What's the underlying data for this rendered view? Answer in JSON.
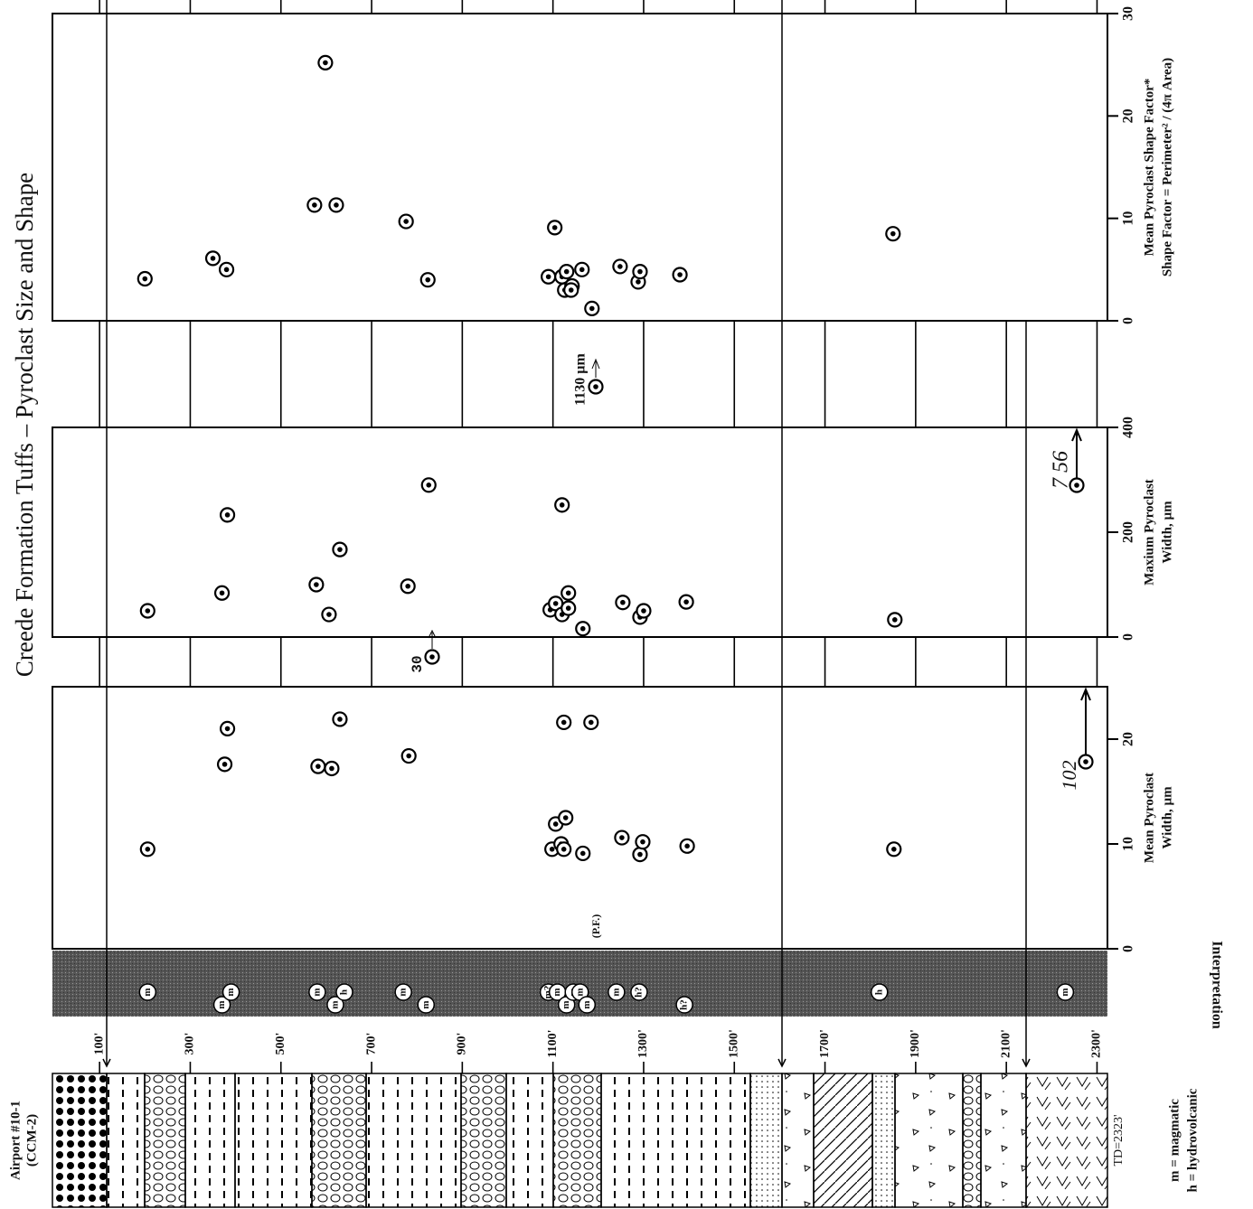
{
  "title": "Creede Formation Tuffs – Pyroclast Size and Shape",
  "well": {
    "name": [
      "Airport #10-1",
      "(CCM-2)"
    ],
    "td": "TD=2323'"
  },
  "legend": [
    "m = magmatic",
    "h = hydrovolcanic"
  ],
  "depth_axis": {
    "lim": [
      0,
      2323
    ],
    "ticks": [
      {
        "value": 100,
        "label": "100'"
      },
      {
        "value": 300,
        "label": "300'"
      },
      {
        "value": 500,
        "label": "500'"
      },
      {
        "value": 700,
        "label": "700'"
      },
      {
        "value": 900,
        "label": "900'"
      },
      {
        "value": 1100,
        "label": "1100'"
      },
      {
        "value": 1300,
        "label": "1300'"
      },
      {
        "value": 1500,
        "label": "1500'"
      },
      {
        "value": 1700,
        "label": "1700'"
      },
      {
        "value": 1900,
        "label": "1900'"
      },
      {
        "value": 2100,
        "label": "2100'"
      },
      {
        "value": 2300,
        "label": "2300'"
      }
    ]
  },
  "interpretation": {
    "label": "Interpretation",
    "note": "(P.F.)",
    "depths": [
      206,
      370,
      390,
      580,
      620,
      640,
      770,
      820,
      1090,
      1110,
      1130,
      1145,
      1160,
      1175,
      1240,
      1290,
      1390,
      1820,
      2230
    ],
    "labels": [
      "m",
      "m",
      "m",
      "m",
      "m",
      "h",
      "m",
      "m",
      "m?",
      "m",
      "m",
      "m",
      "m",
      "m",
      "m",
      "h?",
      "h?",
      "h",
      "m"
    ]
  },
  "chart_data": [
    {
      "type": "scatter",
      "ylabel": [
        "Mean Pyroclast",
        "Width, µm"
      ],
      "color": "#000000",
      "xlim": [
        0,
        2323
      ],
      "ylim": [
        0,
        25
      ],
      "yticks": [
        0,
        10,
        20
      ],
      "x": [
        206,
        376,
        382,
        582,
        612,
        630,
        782,
        1098,
        1106,
        1118,
        1124,
        1128,
        1124,
        1166,
        1184,
        1252,
        1292,
        1298,
        1396,
        1852
      ],
      "values": [
        9.5,
        17.6,
        21,
        17.4,
        17.2,
        21.9,
        18.4,
        9.5,
        11.9,
        10,
        9.5,
        12.5,
        21.6,
        9.1,
        21.6,
        10.6,
        9,
        10.2,
        9.8,
        9.5
      ],
      "annotations": [
        "30",
        "102"
      ]
    },
    {
      "type": "scatter",
      "ylabel": [
        "Maxium Pyroclast",
        "Width, µm"
      ],
      "color": "#000000",
      "xlim": [
        0,
        2323
      ],
      "ylim": [
        0,
        400
      ],
      "yticks": [
        0,
        200,
        400
      ],
      "x": [
        206,
        370,
        382,
        578,
        606,
        630,
        780,
        826,
        1094,
        1106,
        1120,
        1120,
        1134,
        1134,
        1166,
        1254,
        1292,
        1300,
        1394,
        1854
      ],
      "values": [
        50,
        84,
        233,
        100,
        43,
        167,
        97,
        290,
        52,
        64,
        43,
        252,
        55,
        84,
        16,
        66,
        38,
        50,
        67,
        33
      ],
      "annotations": [
        "1130 µm",
        "7 56"
      ]
    },
    {
      "type": "scatter",
      "ylabel": [
        "Mean Pyroclast Shape Factor*",
        "Shape Factor = Perimeter² / (4π Area)"
      ],
      "color": "#000000",
      "xlim": [
        0,
        2323
      ],
      "ylim": [
        0,
        30
      ],
      "yticks": [
        0,
        10,
        20,
        30
      ],
      "x": [
        200,
        350,
        380,
        574,
        598,
        622,
        776,
        824,
        1090,
        1104,
        1120,
        1126,
        1130,
        1142,
        1140,
        1164,
        1186,
        1248,
        1288,
        1292,
        1380,
        1850
      ],
      "values": [
        4.1,
        6.1,
        5.0,
        11.3,
        25.2,
        11.3,
        9.7,
        4.0,
        4.3,
        9.1,
        4.3,
        3.0,
        4.8,
        3.4,
        3.0,
        5.0,
        1.2,
        5.3,
        3.8,
        4.8,
        4.5,
        8.5
      ]
    }
  ]
}
